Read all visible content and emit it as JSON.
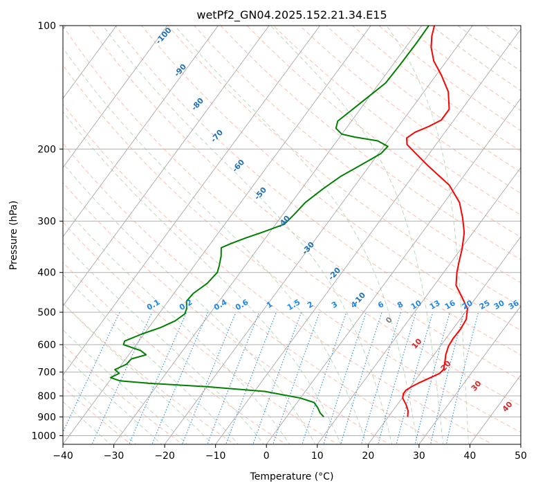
{
  "chart_data": {
    "type": "line",
    "diagram": "skew-T log-P",
    "title": "wetPf2_GN04.2025.152.21.34.E15",
    "xlabel": "Temperature (°C)",
    "ylabel": "Pressure (hPa)",
    "xlim": [
      -40,
      50
    ],
    "ylim": [
      1050,
      100
    ],
    "y_scale": "log",
    "x_ticks": [
      "−40",
      "−30",
      "−20",
      "−10",
      "0",
      "10",
      "20",
      "30",
      "40",
      "50"
    ],
    "y_ticks": [
      "100",
      "200",
      "300",
      "400",
      "500",
      "600",
      "700",
      "800",
      "900",
      "1000"
    ],
    "y_tick_values": [
      100,
      200,
      300,
      400,
      500,
      600,
      700,
      800,
      900,
      1000
    ],
    "grid": true,
    "series": [
      {
        "name": "temperature",
        "color": "#ff0000",
        "points": [
          [
            900,
            23.8
          ],
          [
            870,
            23.0
          ],
          [
            840,
            21.7
          ],
          [
            810,
            20.1
          ],
          [
            790,
            19.6
          ],
          [
            775,
            19.6
          ],
          [
            760,
            20.2
          ],
          [
            745,
            21.0
          ],
          [
            725,
            22.4
          ],
          [
            705,
            23.8
          ],
          [
            690,
            24.0
          ],
          [
            665,
            23.3
          ],
          [
            635,
            22.3
          ],
          [
            605,
            21.6
          ],
          [
            580,
            21.4
          ],
          [
            550,
            21.5
          ],
          [
            520,
            21.2
          ],
          [
            490,
            19.9
          ],
          [
            460,
            17.2
          ],
          [
            430,
            14.3
          ],
          [
            400,
            12.6
          ],
          [
            375,
            11.4
          ],
          [
            350,
            10.2
          ],
          [
            320,
            8.3
          ],
          [
            295,
            5.9
          ],
          [
            270,
            3.0
          ],
          [
            245,
            -1.5
          ],
          [
            220,
            -8.4
          ],
          [
            205,
            -12.7
          ],
          [
            195,
            -15.7
          ],
          [
            188,
            -16.7
          ],
          [
            182,
            -15.9
          ],
          [
            176,
            -14.0
          ],
          [
            170,
            -12.5
          ],
          [
            160,
            -12.5
          ],
          [
            145,
            -15.2
          ],
          [
            132,
            -19.0
          ],
          [
            122,
            -22.5
          ],
          [
            113,
            -25.0
          ],
          [
            106,
            -26.5
          ],
          [
            100,
            -27.5
          ]
        ]
      },
      {
        "name": "dewpoint",
        "color": "#008000",
        "points": [
          [
            900,
            7.3
          ],
          [
            880,
            6.0
          ],
          [
            855,
            4.8
          ],
          [
            830,
            3.3
          ],
          [
            810,
            0.0
          ],
          [
            780,
            -8.0
          ],
          [
            760,
            -20.0
          ],
          [
            745,
            -32.0
          ],
          [
            735,
            -38.0
          ],
          [
            722,
            -40.3
          ],
          [
            705,
            -39.2
          ],
          [
            690,
            -40.6
          ],
          [
            670,
            -39.1
          ],
          [
            650,
            -38.9
          ],
          [
            635,
            -36.6
          ],
          [
            620,
            -38.3
          ],
          [
            600,
            -42.5
          ],
          [
            588,
            -42.8
          ],
          [
            565,
            -40.4
          ],
          [
            545,
            -37.7
          ],
          [
            525,
            -35.8
          ],
          [
            505,
            -34.9
          ],
          [
            490,
            -35.3
          ],
          [
            470,
            -36.4
          ],
          [
            450,
            -36.2
          ],
          [
            425,
            -34.9
          ],
          [
            400,
            -34.5
          ],
          [
            385,
            -35.1
          ],
          [
            365,
            -36.1
          ],
          [
            348,
            -37.3
          ],
          [
            340,
            -36.0
          ],
          [
            330,
            -34.0
          ],
          [
            318,
            -31.2
          ],
          [
            305,
            -28.3
          ],
          [
            290,
            -27.8
          ],
          [
            270,
            -27.3
          ],
          [
            250,
            -25.8
          ],
          [
            233,
            -24.1
          ],
          [
            220,
            -22.0
          ],
          [
            205,
            -19.5
          ],
          [
            197,
            -19.2
          ],
          [
            191,
            -22.0
          ],
          [
            187,
            -27.0
          ],
          [
            184,
            -30.0
          ],
          [
            178,
            -32.0
          ],
          [
            171,
            -32.7
          ],
          [
            162,
            -31.7
          ],
          [
            150,
            -30.3
          ],
          [
            138,
            -28.8
          ],
          [
            125,
            -28.6
          ],
          [
            110,
            -28.5
          ],
          [
            100,
            -28.6
          ]
        ]
      }
    ],
    "reference_lines": {
      "isotherms": {
        "color": "#999999"
      },
      "dry_adiabats": {
        "color": "#ff9b7c",
        "labels": []
      },
      "moist_adiabats": {
        "color": "#9ecb9e"
      },
      "mixing_ratio": {
        "color": "#1e88e5",
        "labels": [
          "0.1",
          "0.2",
          "0.4",
          "0.6",
          "1",
          "1.5",
          "2",
          "3",
          "4",
          "6",
          "8",
          "10",
          "13",
          "16",
          "20",
          "25",
          "30",
          "36"
        ]
      },
      "dry_adiabat_labels_blue": [
        "-100",
        "-90",
        "-80",
        "-70",
        "-60",
        "-50",
        "-40",
        "-30",
        "-20",
        "-10"
      ],
      "dry_adiabat_labels_gray": [
        "0"
      ],
      "dry_adiabat_labels_red": [
        "10",
        "20",
        "30",
        "40"
      ]
    }
  }
}
